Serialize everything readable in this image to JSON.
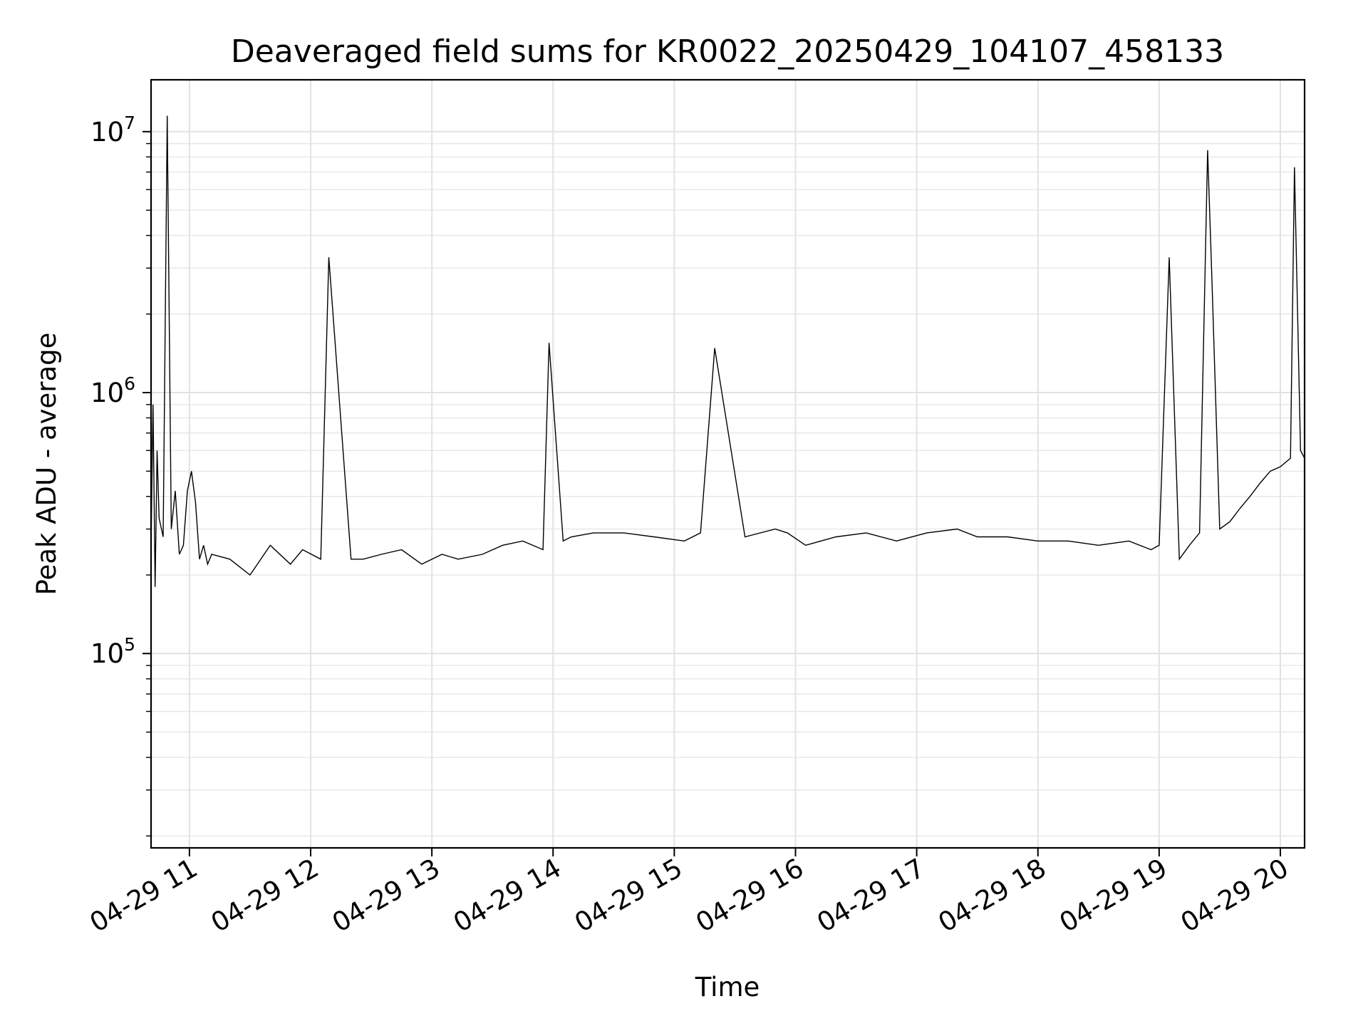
{
  "chart_data": {
    "type": "line",
    "title": "Deaveraged field sums for KR0022_20250429_104107_458133",
    "xlabel": "Time",
    "ylabel": "Peak ADU - average",
    "y_scale": "log",
    "ylim": [
      18000,
      15800000
    ],
    "xlim": [
      "2025-04-29 10:41",
      "2025-04-29 20:12"
    ],
    "x_ticks": [
      {
        "value": "2025-04-29 11:00",
        "label": "04-29 11"
      },
      {
        "value": "2025-04-29 12:00",
        "label": "04-29 12"
      },
      {
        "value": "2025-04-29 13:00",
        "label": "04-29 13"
      },
      {
        "value": "2025-04-29 14:00",
        "label": "04-29 14"
      },
      {
        "value": "2025-04-29 15:00",
        "label": "04-29 15"
      },
      {
        "value": "2025-04-29 16:00",
        "label": "04-29 16"
      },
      {
        "value": "2025-04-29 17:00",
        "label": "04-29 17"
      },
      {
        "value": "2025-04-29 18:00",
        "label": "04-29 18"
      },
      {
        "value": "2025-04-29 19:00",
        "label": "04-29 19"
      },
      {
        "value": "2025-04-29 20:00",
        "label": "04-29 20"
      }
    ],
    "y_ticks": [
      {
        "value": 100000,
        "base": "10",
        "exp": "5"
      },
      {
        "value": 1000000,
        "base": "10",
        "exp": "6"
      },
      {
        "value": 10000000,
        "base": "10",
        "exp": "7"
      }
    ],
    "grid": true,
    "line_color": "#000000",
    "series": [
      {
        "x": [
          "2025-04-29 10:41",
          "2025-04-29 10:42",
          "2025-04-29 10:43",
          "2025-04-29 10:44",
          "2025-04-29 10:45",
          "2025-04-29 10:47",
          "2025-04-29 10:49",
          "2025-04-29 10:51",
          "2025-04-29 10:53",
          "2025-04-29 10:55",
          "2025-04-29 10:57",
          "2025-04-29 10:59",
          "2025-04-29 11:01",
          "2025-04-29 11:03",
          "2025-04-29 11:05",
          "2025-04-29 11:07",
          "2025-04-29 11:09",
          "2025-04-29 11:11",
          "2025-04-29 11:20",
          "2025-04-29 11:30",
          "2025-04-29 11:40",
          "2025-04-29 11:50",
          "2025-04-29 11:56",
          "2025-04-29 12:05",
          "2025-04-29 12:09",
          "2025-04-29 12:20",
          "2025-04-29 12:26",
          "2025-04-29 12:35",
          "2025-04-29 12:45",
          "2025-04-29 12:55",
          "2025-04-29 13:05",
          "2025-04-29 13:13",
          "2025-04-29 13:25",
          "2025-04-29 13:35",
          "2025-04-29 13:45",
          "2025-04-29 13:55",
          "2025-04-29 13:58",
          "2025-04-29 14:05",
          "2025-04-29 14:09",
          "2025-04-29 14:20",
          "2025-04-29 14:35",
          "2025-04-29 14:50",
          "2025-04-29 15:05",
          "2025-04-29 15:13",
          "2025-04-29 15:20",
          "2025-04-29 15:35",
          "2025-04-29 15:50",
          "2025-04-29 15:56",
          "2025-04-29 16:05",
          "2025-04-29 16:20",
          "2025-04-29 16:35",
          "2025-04-29 16:50",
          "2025-04-29 17:05",
          "2025-04-29 17:20",
          "2025-04-29 17:30",
          "2025-04-29 17:45",
          "2025-04-29 18:00",
          "2025-04-29 18:15",
          "2025-04-29 18:30",
          "2025-04-29 18:45",
          "2025-04-29 18:56",
          "2025-04-29 19:00",
          "2025-04-29 19:05",
          "2025-04-29 19:10",
          "2025-04-29 19:15",
          "2025-04-29 19:20",
          "2025-04-29 19:24",
          "2025-04-29 19:26",
          "2025-04-29 19:30",
          "2025-04-29 19:35",
          "2025-04-29 19:40",
          "2025-04-29 19:45",
          "2025-04-29 19:50",
          "2025-04-29 19:55",
          "2025-04-29 20:00",
          "2025-04-29 20:05",
          "2025-04-29 20:07",
          "2025-04-29 20:10",
          "2025-04-29 20:12"
        ],
        "values": [
          260000,
          900000,
          180000,
          600000,
          330000,
          280000,
          11500000,
          300000,
          420000,
          240000,
          260000,
          420000,
          500000,
          380000,
          230000,
          260000,
          220000,
          240000,
          230000,
          200000,
          260000,
          220000,
          250000,
          230000,
          3300000,
          230000,
          230000,
          240000,
          250000,
          220000,
          240000,
          230000,
          240000,
          260000,
          270000,
          250000,
          1550000,
          270000,
          280000,
          290000,
          290000,
          280000,
          270000,
          290000,
          1480000,
          280000,
          300000,
          290000,
          260000,
          280000,
          290000,
          270000,
          290000,
          300000,
          280000,
          280000,
          270000,
          270000,
          260000,
          270000,
          250000,
          260000,
          3300000,
          230000,
          260000,
          290000,
          8500000,
          2900000,
          300000,
          320000,
          360000,
          400000,
          450000,
          500000,
          520000,
          560000,
          7300000,
          600000,
          560000
        ]
      }
    ]
  }
}
